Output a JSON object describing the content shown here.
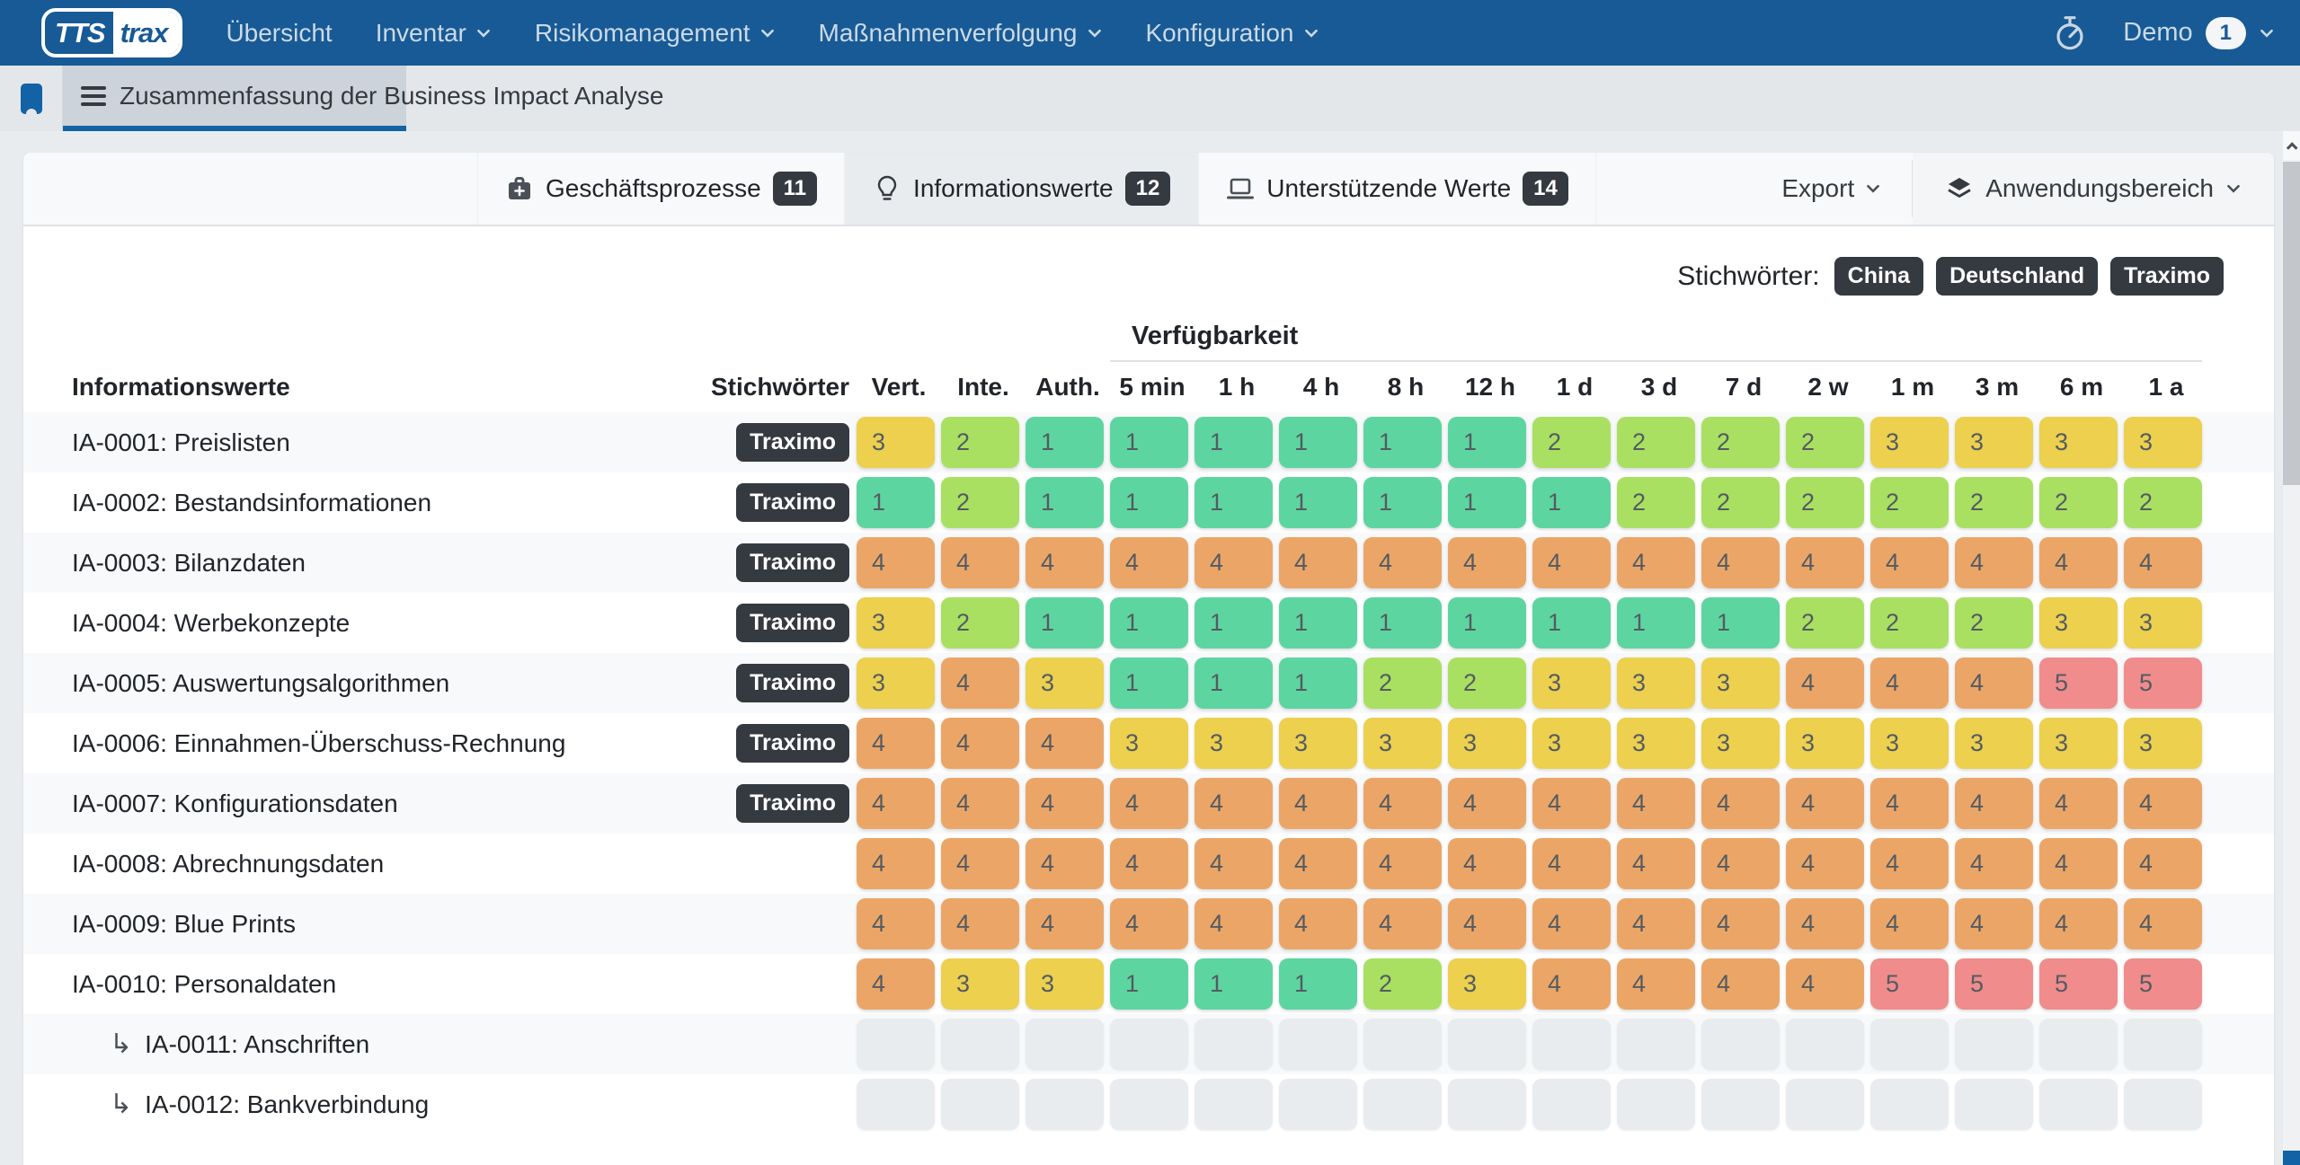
{
  "navbar": {
    "logo": {
      "left": "TTS",
      "right": "trax"
    },
    "items": [
      {
        "label": "Übersicht",
        "caret": false
      },
      {
        "label": "Inventar",
        "caret": true
      },
      {
        "label": "Risikomanagement",
        "caret": true
      },
      {
        "label": "Maßnahmenverfolgung",
        "caret": true
      },
      {
        "label": "Konfiguration",
        "caret": true
      }
    ],
    "user": {
      "name": "Demo",
      "badge": "1"
    }
  },
  "tabstrip": {
    "active_tab_label": "Zusammenfassung der Business Impact Analyse"
  },
  "toolbar": {
    "tabs": [
      {
        "label": "Geschäftsprozesse",
        "count": "11"
      },
      {
        "label": "Informationswerte",
        "count": "12"
      },
      {
        "label": "Unterstützende Werte",
        "count": "14"
      }
    ],
    "export_label": "Export",
    "scope_label": "Anwendungsbereich"
  },
  "keywords": {
    "label": "Stichwörter:",
    "tags": [
      "China",
      "Deutschland",
      "Traximo"
    ]
  },
  "table": {
    "group_header": "Verfügbarkeit",
    "columns": {
      "name": "Informationswerte",
      "tags": "Stichwörter",
      "values": [
        "Vert.",
        "Inte.",
        "Auth.",
        "5 min",
        "1 h",
        "4 h",
        "8 h",
        "12 h",
        "1 d",
        "3 d",
        "7 d",
        "2 w",
        "1 m",
        "3 m",
        "6 m",
        "1 a"
      ]
    },
    "value_colors": {
      "1": "#5dd5a0",
      "2": "#a9e061",
      "3": "#ecd04e",
      "4": "#eba667",
      "5": "#f08c8c",
      "empty": "#e9ecef"
    },
    "rows": [
      {
        "name": "IA-0001: Preislisten",
        "tag": "Traximo",
        "sub": false,
        "values": [
          3,
          2,
          1,
          1,
          1,
          1,
          1,
          1,
          2,
          2,
          2,
          2,
          3,
          3,
          3,
          3
        ]
      },
      {
        "name": "IA-0002: Bestandsinformationen",
        "tag": "Traximo",
        "sub": false,
        "values": [
          1,
          2,
          1,
          1,
          1,
          1,
          1,
          1,
          1,
          2,
          2,
          2,
          2,
          2,
          2,
          2
        ]
      },
      {
        "name": "IA-0003: Bilanzdaten",
        "tag": "Traximo",
        "sub": false,
        "values": [
          4,
          4,
          4,
          4,
          4,
          4,
          4,
          4,
          4,
          4,
          4,
          4,
          4,
          4,
          4,
          4
        ]
      },
      {
        "name": "IA-0004: Werbekonzepte",
        "tag": "Traximo",
        "sub": false,
        "values": [
          3,
          2,
          1,
          1,
          1,
          1,
          1,
          1,
          1,
          1,
          1,
          2,
          2,
          2,
          3,
          3
        ]
      },
      {
        "name": "IA-0005: Auswertungsalgorithmen",
        "tag": "Traximo",
        "sub": false,
        "values": [
          3,
          4,
          3,
          1,
          1,
          1,
          2,
          2,
          3,
          3,
          3,
          4,
          4,
          4,
          5,
          5
        ]
      },
      {
        "name": "IA-0006: Einnahmen-Überschuss-Rechnung",
        "tag": "Traximo",
        "sub": false,
        "values": [
          4,
          4,
          4,
          3,
          3,
          3,
          3,
          3,
          3,
          3,
          3,
          3,
          3,
          3,
          3,
          3
        ]
      },
      {
        "name": "IA-0007: Konfigurationsdaten",
        "tag": "Traximo",
        "sub": false,
        "values": [
          4,
          4,
          4,
          4,
          4,
          4,
          4,
          4,
          4,
          4,
          4,
          4,
          4,
          4,
          4,
          4
        ]
      },
      {
        "name": "IA-0008: Abrechnungsdaten",
        "tag": null,
        "sub": false,
        "values": [
          4,
          4,
          4,
          4,
          4,
          4,
          4,
          4,
          4,
          4,
          4,
          4,
          4,
          4,
          4,
          4
        ]
      },
      {
        "name": "IA-0009: Blue Prints",
        "tag": null,
        "sub": false,
        "values": [
          4,
          4,
          4,
          4,
          4,
          4,
          4,
          4,
          4,
          4,
          4,
          4,
          4,
          4,
          4,
          4
        ]
      },
      {
        "name": "IA-0010: Personaldaten",
        "tag": null,
        "sub": false,
        "values": [
          4,
          3,
          3,
          1,
          1,
          1,
          2,
          3,
          4,
          4,
          4,
          4,
          5,
          5,
          5,
          5
        ]
      },
      {
        "name": "IA-0011: Anschriften",
        "tag": null,
        "sub": true,
        "values": []
      },
      {
        "name": "IA-0012: Bankverbindung",
        "tag": null,
        "sub": true,
        "values": []
      }
    ]
  }
}
